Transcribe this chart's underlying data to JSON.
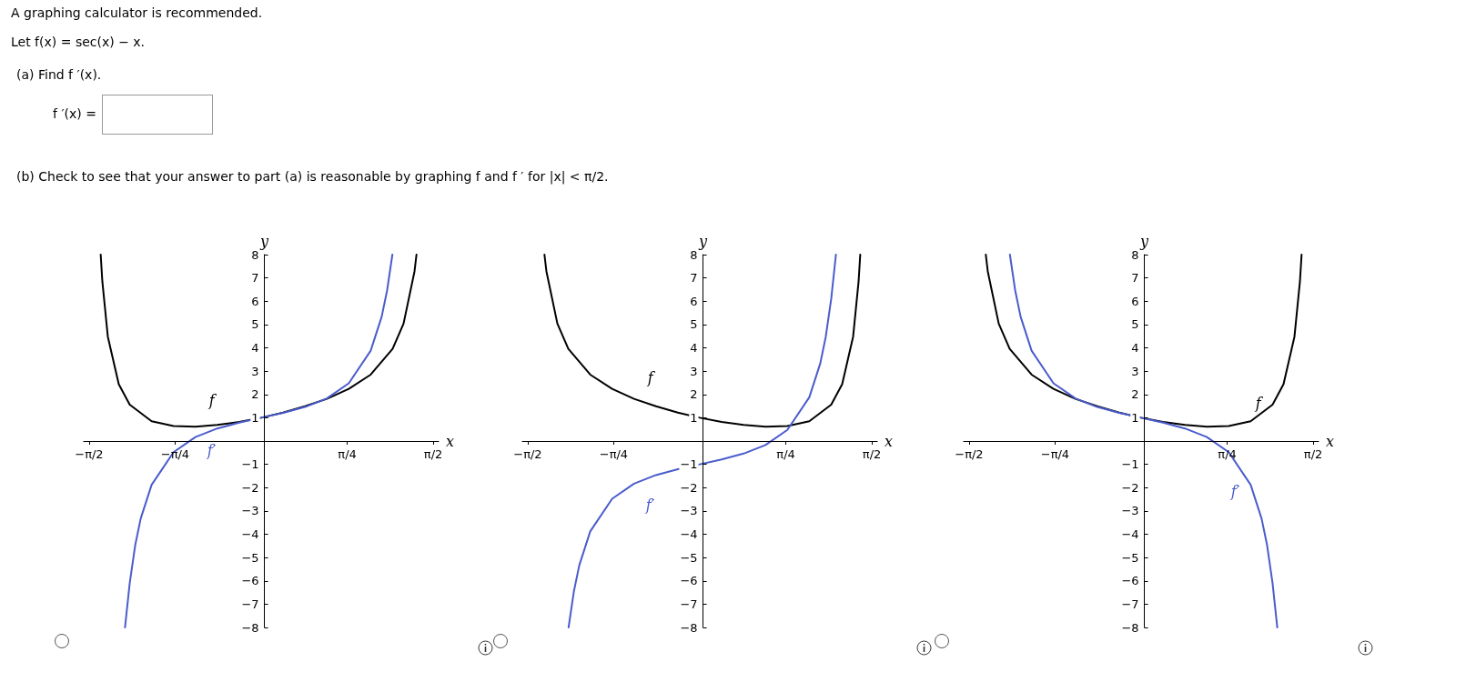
{
  "chart_data": [
    {
      "type": "line",
      "title": "A graphing calculator is recommended.",
      "subtitle": "Let f(x) = sec(x) − x.",
      "xlabel": "x",
      "ylabel": "y",
      "annotations": [
        "(a)  Find f ′(x).",
        "f ′(x) =",
        "(b)  Check to see that your answer to part (a) is reasonable by graphing f and f ′ for |x| < π/2."
      ],
      "xlim": [
        -1.62,
        1.62
      ],
      "ylim": [
        -8,
        8
      ],
      "xticks": [
        {
          "value": -1.5708,
          "label": "−π/2"
        },
        {
          "value": -0.7854,
          "label": "−π/4"
        },
        {
          "value": 0.7854,
          "label": "π/4"
        },
        {
          "value": 1.5708,
          "label": "π/2"
        }
      ],
      "yticks": [
        -8,
        -7,
        -6,
        -5,
        -4,
        -3,
        -2,
        -1,
        1,
        2,
        3,
        4,
        5,
        6,
        7,
        8
      ],
      "marker": "none",
      "line_style": "solid",
      "series": [
        {
          "name": "f",
          "color": "#000000",
          "x": [
            -1.465,
            -1.45,
            -1.4,
            -1.3,
            -1.2,
            -1.0,
            -0.8,
            -0.6,
            -0.4,
            -0.2,
            0,
            0.2,
            0.4,
            0.6,
            0.8,
            1.0,
            1.2,
            1.3,
            1.4,
            1.418
          ],
          "values": [
            8,
            6.85,
            4.48,
            2.44,
            1.56,
            0.85,
            0.64,
            0.61,
            0.69,
            0.82,
            1,
            1.22,
            1.49,
            1.81,
            2.24,
            2.85,
            3.96,
            5.04,
            7.28,
            8
          ]
        },
        {
          "name": "f′",
          "color": "#4a5ccc",
          "x": [
            -1.243,
            -1.2,
            -1.15,
            -1.1,
            -1.0,
            -0.8,
            -0.6,
            -0.4,
            -0.2,
            0,
            0.2,
            0.4,
            0.6,
            0.8,
            1.0,
            1.1,
            1.15,
            1.198
          ],
          "values": [
            -8,
            -6.1,
            -4.47,
            -3.33,
            -1.88,
            -0.48,
            0.17,
            0.54,
            0.79,
            1,
            1.21,
            1.46,
            1.83,
            2.48,
            3.88,
            5.33,
            6.47,
            8
          ]
        }
      ]
    },
    {
      "type": "line",
      "xlabel": "x",
      "ylabel": "y",
      "xlim": [
        -1.62,
        1.62
      ],
      "ylim": [
        -8,
        8
      ],
      "xticks": [
        {
          "value": -1.5708,
          "label": "−π/2"
        },
        {
          "value": -0.7854,
          "label": "−π/4"
        },
        {
          "value": 0.7854,
          "label": "π/4"
        },
        {
          "value": 1.5708,
          "label": "π/2"
        }
      ],
      "yticks": [
        -8,
        -7,
        -6,
        -5,
        -4,
        -3,
        -2,
        -1,
        1,
        2,
        3,
        4,
        5,
        6,
        7,
        8
      ],
      "marker": "none",
      "line_style": "solid",
      "series": [
        {
          "name": "f",
          "color": "#000000",
          "x": [
            -1.418,
            -1.4,
            -1.3,
            -1.2,
            -1.0,
            -0.8,
            -0.6,
            -0.4,
            -0.2,
            0,
            0.2,
            0.4,
            0.6,
            0.8,
            1.0,
            1.2,
            1.3,
            1.4,
            1.45,
            1.465
          ],
          "values": [
            8,
            7.28,
            5.04,
            3.96,
            2.85,
            2.24,
            1.81,
            1.49,
            1.22,
            1,
            0.82,
            0.69,
            0.61,
            0.64,
            0.85,
            1.56,
            2.44,
            4.48,
            6.85,
            8
          ]
        },
        {
          "name": "f′",
          "color": "#4a5ccc",
          "x": [
            -1.198,
            -1.15,
            -1.1,
            -1.0,
            -0.8,
            -0.6,
            -0.4,
            -0.2,
            0,
            0.2,
            0.4,
            0.6,
            0.8,
            1.0,
            1.1,
            1.15,
            1.2,
            1.243
          ],
          "values": [
            -8,
            -6.47,
            -5.33,
            -3.88,
            -2.48,
            -1.83,
            -1.46,
            -1.21,
            -1,
            -0.79,
            -0.54,
            -0.17,
            0.48,
            1.88,
            3.33,
            4.47,
            6.1,
            8
          ]
        }
      ]
    },
    {
      "type": "line",
      "xlabel": "x",
      "ylabel": "y",
      "xlim": [
        -1.62,
        1.62
      ],
      "ylim": [
        -8,
        8
      ],
      "xticks": [
        {
          "value": -1.5708,
          "label": "−π/2"
        },
        {
          "value": -0.7854,
          "label": "−π/4"
        },
        {
          "value": 0.7854,
          "label": "π/4"
        },
        {
          "value": 1.5708,
          "label": "π/2"
        }
      ],
      "yticks": [
        -8,
        -7,
        -6,
        -5,
        -4,
        -3,
        -2,
        -1,
        1,
        2,
        3,
        4,
        5,
        6,
        7,
        8
      ],
      "marker": "none",
      "line_style": "solid",
      "series": [
        {
          "name": "f",
          "color": "#000000",
          "x": [
            -1.418,
            -1.4,
            -1.3,
            -1.2,
            -1.0,
            -0.8,
            -0.6,
            -0.4,
            -0.2,
            0,
            0.2,
            0.4,
            0.6,
            0.8,
            1.0,
            1.2,
            1.3,
            1.4,
            1.45,
            1.465
          ],
          "values": [
            8,
            7.28,
            5.04,
            3.96,
            2.85,
            2.24,
            1.81,
            1.49,
            1.22,
            1,
            0.82,
            0.69,
            0.61,
            0.64,
            0.85,
            1.56,
            2.44,
            4.48,
            6.85,
            8
          ]
        },
        {
          "name": "f′",
          "color": "#4a5ccc",
          "x": [
            -1.198,
            -1.15,
            -1.1,
            -1.0,
            -0.8,
            -0.6,
            -0.4,
            -0.2,
            0,
            0.2,
            0.4,
            0.6,
            0.8,
            1.0,
            1.1,
            1.15,
            1.2,
            1.243
          ],
          "values": [
            8,
            6.47,
            5.33,
            3.88,
            2.48,
            1.83,
            1.46,
            1.21,
            1,
            0.79,
            0.54,
            0.17,
            -0.48,
            -1.88,
            -3.33,
            -4.47,
            -6.1,
            -8
          ]
        }
      ]
    }
  ]
}
